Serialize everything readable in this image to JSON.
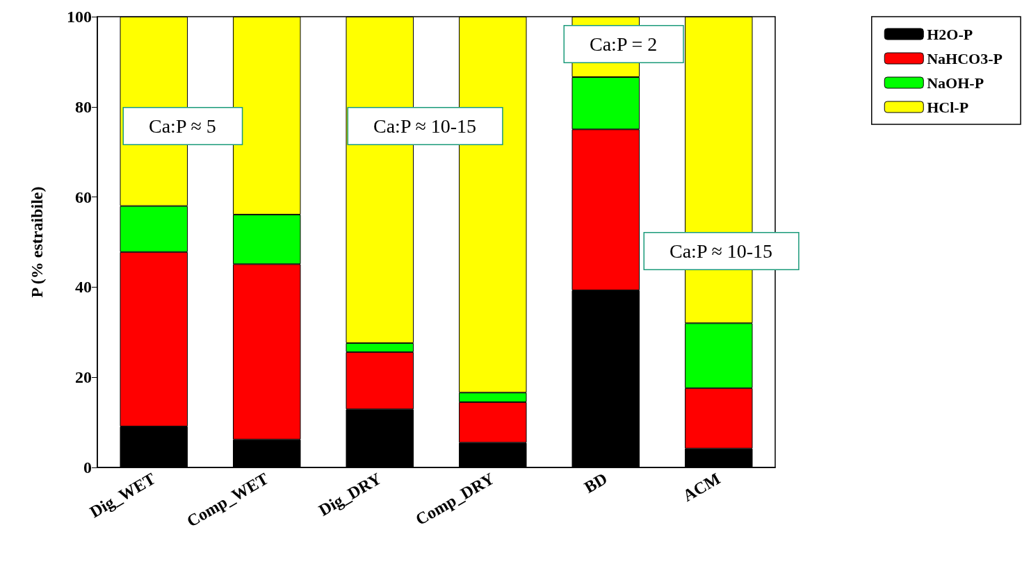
{
  "chart_data": {
    "type": "bar",
    "stacked": true,
    "ylabel": "P (% estraibile)",
    "categories": [
      "Dig_WET",
      "Comp_WET",
      "Dig_DRY",
      "Comp_DRY",
      "BD",
      "ACM"
    ],
    "series": [
      {
        "name": "H2O-P",
        "color": "#000000",
        "values": [
          9.1,
          6.2,
          12.9,
          5.5,
          39.3,
          4.2
        ]
      },
      {
        "name": "NaHCO3-P",
        "color": "#ff0000",
        "values": [
          38.7,
          38.9,
          12.7,
          9.0,
          35.7,
          13.4
        ]
      },
      {
        "name": "NaOH-P",
        "color": "#00ff00",
        "values": [
          10.2,
          11.0,
          2.0,
          2.1,
          11.6,
          14.4
        ]
      },
      {
        "name": "HCl-P",
        "color": "#ffff00",
        "values": [
          42.0,
          43.9,
          72.4,
          83.4,
          13.4,
          68.0
        ]
      }
    ],
    "ylim": [
      0,
      100
    ],
    "yticks": [
      0,
      20,
      40,
      60,
      80,
      100
    ],
    "grid": false,
    "legend": "top right",
    "annotations": [
      "Ca:P ≈ 5",
      "Ca:P ≈ 10-15",
      "Ca:P = 2",
      "Ca:P ≈ 10-15"
    ]
  }
}
